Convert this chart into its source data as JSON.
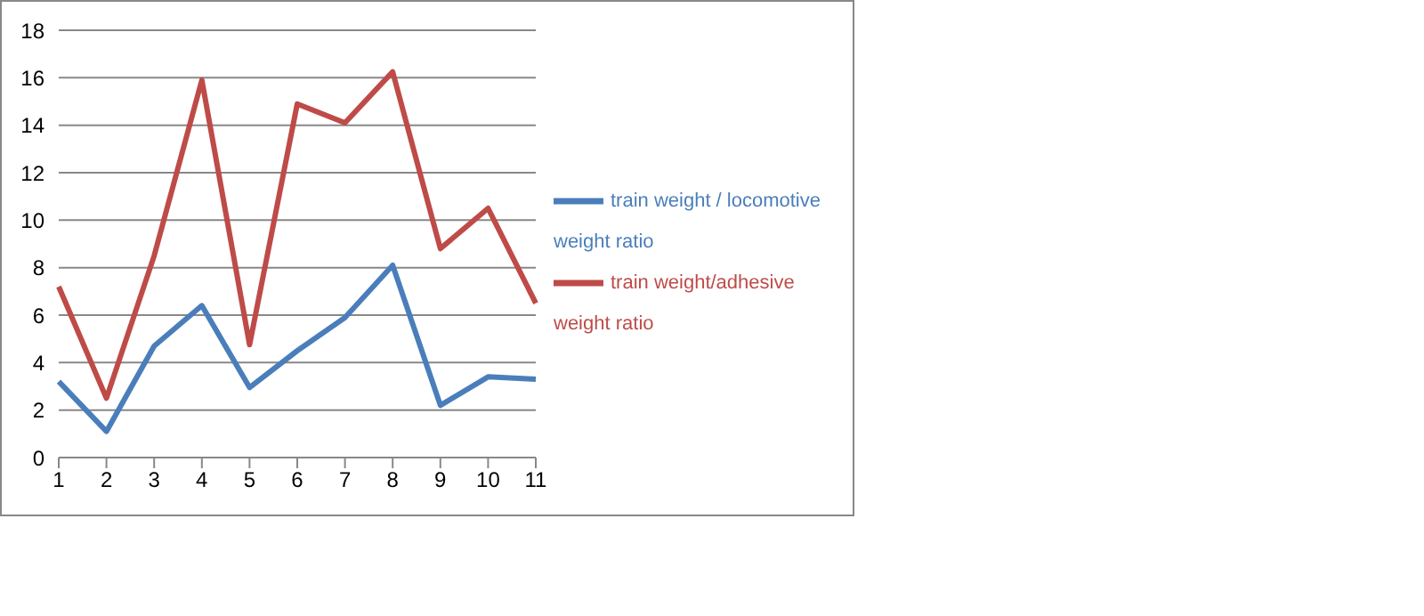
{
  "chart_data": {
    "type": "line",
    "categories": [
      "1",
      "2",
      "3",
      "4",
      "5",
      "6",
      "7",
      "8",
      "9",
      "10",
      "11"
    ],
    "series": [
      {
        "name": "train weight / locomotive weight ratio",
        "color": "#4a7ebb",
        "values": [
          3.2,
          1.1,
          4.7,
          6.4,
          2.95,
          4.5,
          5.9,
          8.1,
          2.2,
          3.4,
          3.3
        ]
      },
      {
        "name": "train weight/adhesive weight ratio",
        "color": "#be4b48",
        "values": [
          7.2,
          2.5,
          8.5,
          15.9,
          4.75,
          14.9,
          14.1,
          16.25,
          8.8,
          10.5,
          6.5
        ]
      }
    ],
    "ylim": [
      0,
      18
    ],
    "yticks": [
      0,
      2,
      4,
      6,
      8,
      10,
      12,
      14,
      16,
      18
    ],
    "grid": "y",
    "legend": "right",
    "marker": "none",
    "line_style": "solid"
  }
}
